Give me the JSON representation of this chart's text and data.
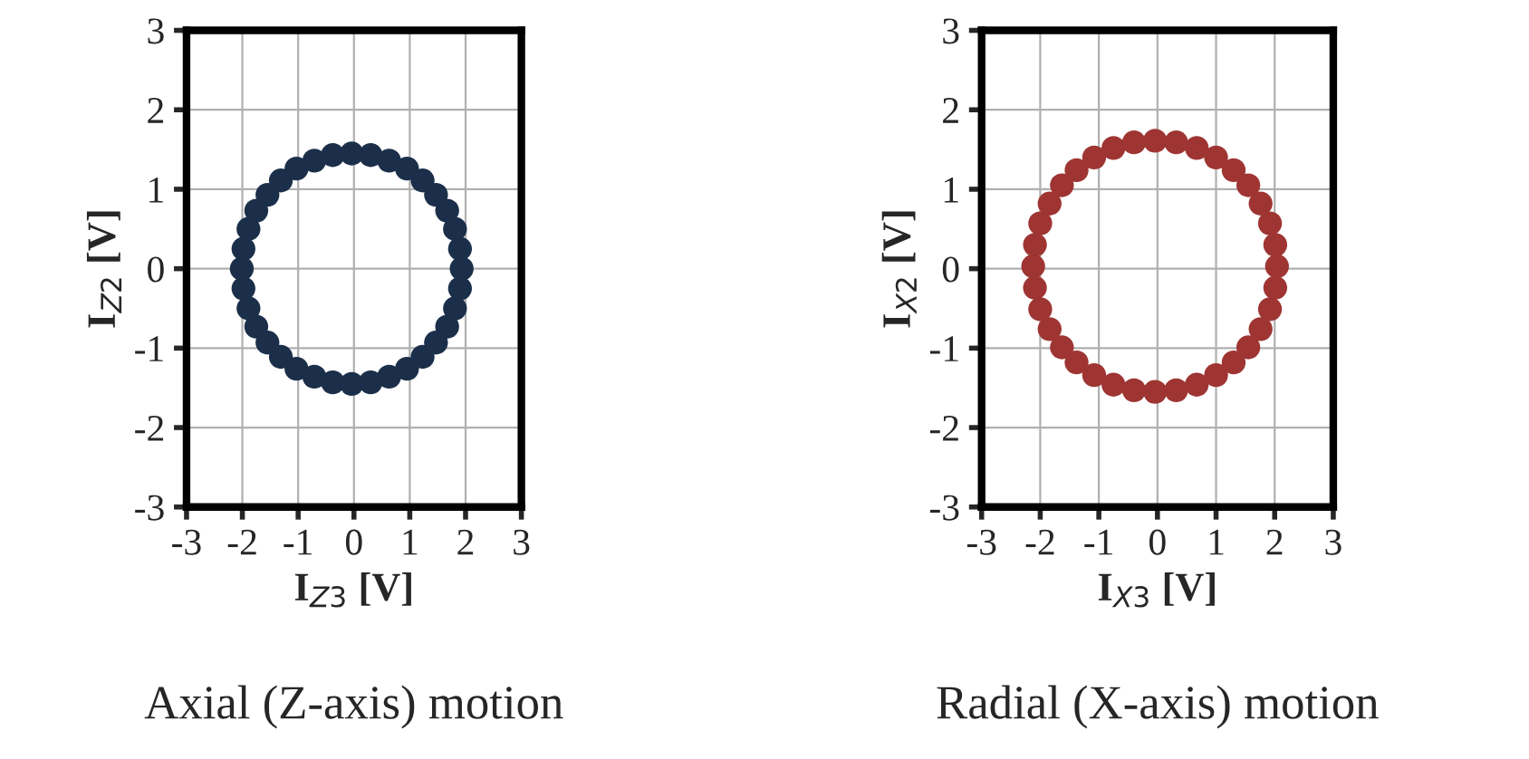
{
  "chart_data": [
    {
      "type": "scatter",
      "title": "Axial (Z-axis) motion",
      "xlabel": "I$_{Z3}$ [V]",
      "ylabel": "I$_{Z2}$ [V]",
      "xlim": [
        -3,
        3
      ],
      "ylim": [
        -3,
        3
      ],
      "xticks": [
        -3,
        -2,
        -1,
        0,
        1,
        2,
        3
      ],
      "yticks": [
        -3,
        -2,
        -1,
        0,
        1,
        2,
        3
      ],
      "grid": true,
      "marker": "circle",
      "series": [
        {
          "color": "#1b2f4a",
          "x": [
            1.93,
            1.9,
            1.81,
            1.67,
            1.47,
            1.23,
            0.95,
            0.63,
            0.3,
            -0.04,
            -0.38,
            -0.71,
            -1.03,
            -1.31,
            -1.55,
            -1.75,
            -1.89,
            -1.98,
            -2.01,
            -1.98,
            -1.89,
            -1.75,
            -1.55,
            -1.31,
            -1.03,
            -0.71,
            -0.38,
            -0.04,
            0.3,
            0.63,
            0.95,
            1.23,
            1.47,
            1.67,
            1.81,
            1.9
          ],
          "values": [
            0,
            0.25,
            0.5,
            0.73,
            0.93,
            1.11,
            1.26,
            1.36,
            1.43,
            1.45,
            1.43,
            1.36,
            1.26,
            1.11,
            0.93,
            0.73,
            0.5,
            0.25,
            0,
            -0.25,
            -0.5,
            -0.73,
            -0.93,
            -1.11,
            -1.26,
            -1.36,
            -1.43,
            -1.45,
            -1.43,
            -1.36,
            -1.26,
            -1.11,
            -0.93,
            -0.73,
            -0.5,
            -0.25
          ]
        }
      ]
    },
    {
      "type": "scatter",
      "title": "Radial (X-axis) motion",
      "xlabel": "I$_{X3}$ [V]",
      "ylabel": "I$_{X2}$ [V]",
      "xlim": [
        -3,
        3
      ],
      "ylim": [
        -3,
        3
      ],
      "xticks": [
        -3,
        -2,
        -1,
        0,
        1,
        2,
        3
      ],
      "yticks": [
        -3,
        -2,
        -1,
        0,
        1,
        2,
        3
      ],
      "grid": true,
      "marker": "circle",
      "series": [
        {
          "color": "#9e3533",
          "x": [
            2.04,
            2.01,
            1.92,
            1.76,
            1.55,
            1.3,
            1.0,
            0.67,
            0.32,
            -0.04,
            -0.4,
            -0.75,
            -1.08,
            -1.38,
            -1.63,
            -1.84,
            -2.0,
            -2.09,
            -2.12,
            -2.09,
            -2.0,
            -1.84,
            -1.63,
            -1.38,
            -1.08,
            -0.75,
            -0.4,
            -0.04,
            0.32,
            0.67,
            1.0,
            1.3,
            1.55,
            1.76,
            1.92,
            2.01
          ],
          "values": [
            0.03,
            0.3,
            0.57,
            0.82,
            1.05,
            1.24,
            1.4,
            1.52,
            1.59,
            1.61,
            1.59,
            1.52,
            1.4,
            1.24,
            1.05,
            0.82,
            0.57,
            0.3,
            0.03,
            -0.24,
            -0.51,
            -0.76,
            -0.99,
            -1.18,
            -1.34,
            -1.46,
            -1.53,
            -1.55,
            -1.53,
            -1.46,
            -1.34,
            -1.18,
            -0.99,
            -0.76,
            -0.51,
            -0.24
          ]
        }
      ]
    }
  ]
}
